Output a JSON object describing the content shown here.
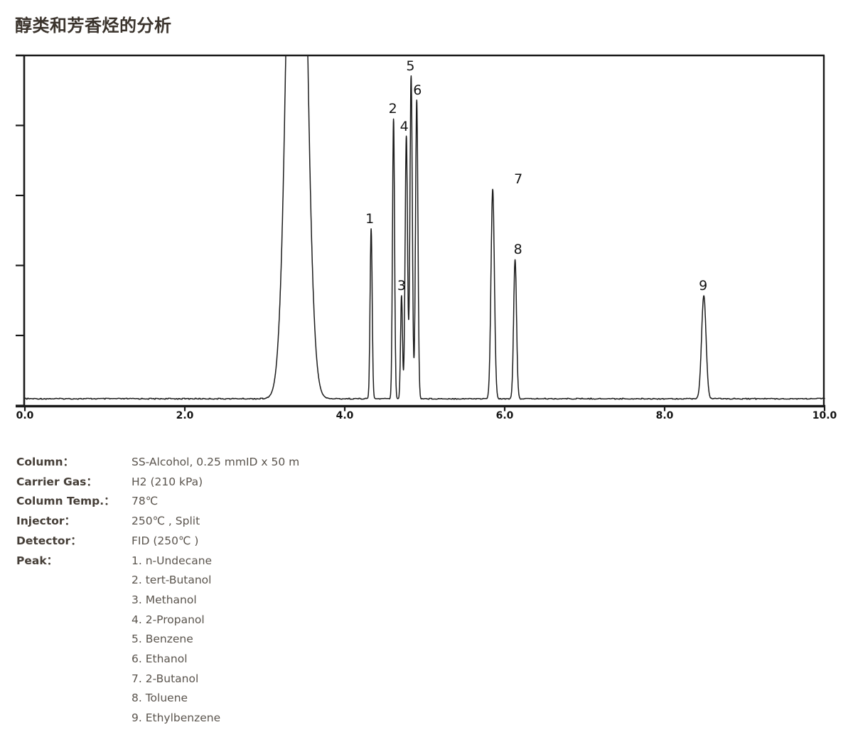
{
  "title": "醇类和芳香烃的分析",
  "chart_data": {
    "type": "line",
    "title": "醇类和芳香烃的分析",
    "xlabel": "",
    "ylabel": "",
    "xlim": [
      0.0,
      10.0
    ],
    "ylim": [
      0,
      1
    ],
    "grid": false,
    "x_tick_values": [
      0,
      2,
      4,
      6,
      8,
      10
    ],
    "x_tick_labels": [
      "0.0",
      "2.0",
      "4.0",
      "6.0",
      "8.0",
      "10.0"
    ],
    "y_tick_count": 6,
    "trace_color": "#1c1c1c",
    "axis_color": "#1a1a1a",
    "solvent_peak": {
      "rt": 3.4,
      "height": 2.6,
      "sigma": 0.1,
      "clipped_at_top": true
    },
    "peaks": [
      {
        "num": "1",
        "name": "n-Undecane",
        "rt": 4.33,
        "height": 0.495,
        "sigma": 0.013,
        "label_dx": -2
      },
      {
        "num": "2",
        "name": "tert-Butanol",
        "rt": 4.61,
        "height": 0.815,
        "sigma": 0.013,
        "label_dx": -1
      },
      {
        "num": "3",
        "name": "Methanol",
        "rt": 4.71,
        "height": 0.3,
        "sigma": 0.012,
        "label_dx": 0
      },
      {
        "num": "4",
        "name": "2-Propanol",
        "rt": 4.77,
        "height": 0.765,
        "sigma": 0.015,
        "label_dx": -3
      },
      {
        "num": "5",
        "name": "Benzene",
        "rt": 4.83,
        "height": 0.94,
        "sigma": 0.015,
        "label_dx": -1
      },
      {
        "num": "6",
        "name": "Ethanol",
        "rt": 4.9,
        "height": 0.87,
        "sigma": 0.015,
        "label_dx": 1
      },
      {
        "num": "7",
        "name": "2-Butanol",
        "rt": 5.85,
        "height": 0.61,
        "sigma": 0.021,
        "label_dx": 36
      },
      {
        "num": "8",
        "name": "Toluene",
        "rt": 6.13,
        "height": 0.405,
        "sigma": 0.018,
        "label_dx": 4
      },
      {
        "num": "9",
        "name": "Ethylbenzene",
        "rt": 8.49,
        "height": 0.3,
        "sigma": 0.028,
        "label_dx": -1
      }
    ]
  },
  "conditions": {
    "rows": [
      {
        "label": "Column：",
        "value": "SS-Alcohol, 0.25 mmID x 50 m"
      },
      {
        "label": "Carrier Gas：",
        "value": "H2 (210 kPa)"
      },
      {
        "label": "Column Temp.：",
        "value": "78℃"
      },
      {
        "label": "Injector：",
        "value": "250℃ , Split"
      },
      {
        "label": "Detector：",
        "value": "FID (250℃ )"
      }
    ],
    "peak_row_label": "Peak：",
    "peak_list": [
      "1. n-Undecane",
      "2. tert-Butanol",
      "3. Methanol",
      "4. 2-Propanol",
      "5. Benzene",
      "6. Ethanol",
      "7. 2-Butanol",
      "8. Toluene",
      "9. Ethylbenzene"
    ]
  },
  "colors": {
    "title_text": "#3a332c",
    "label_text": "#453e37",
    "value_text": "#5a544d",
    "axis": "#1a1a1a",
    "trace": "#1c1c1c",
    "background": "#ffffff"
  }
}
